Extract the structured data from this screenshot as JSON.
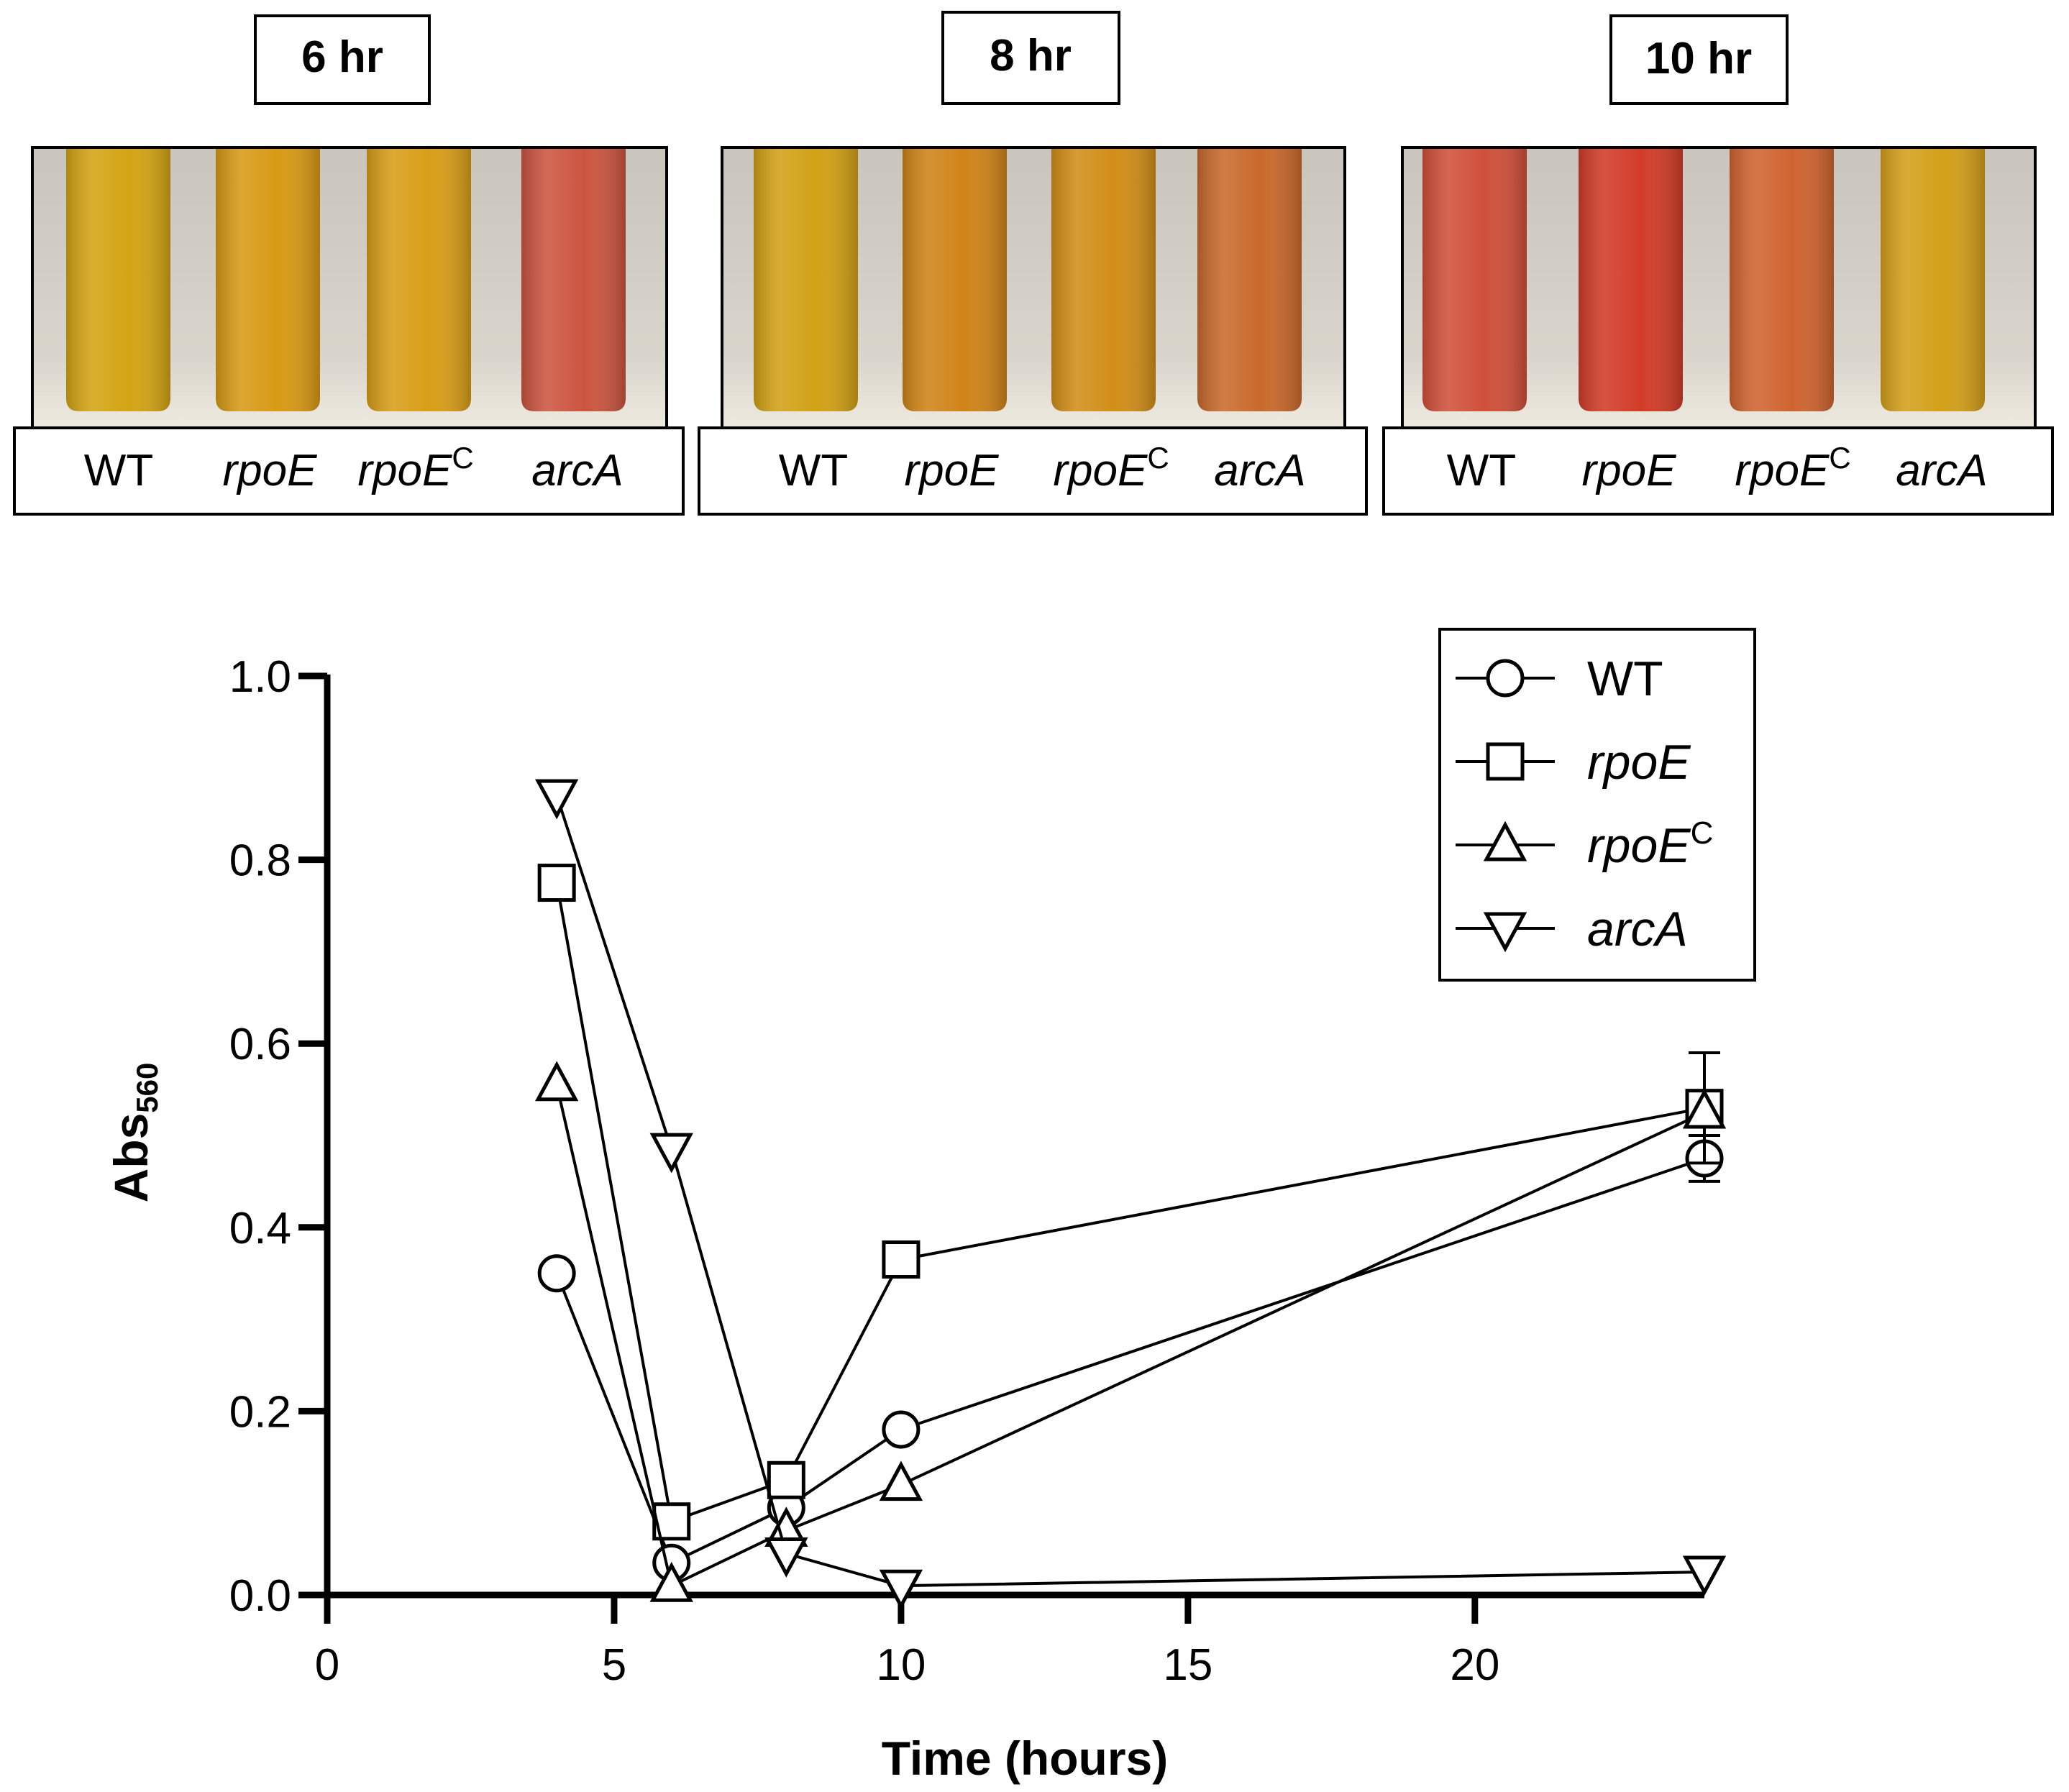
{
  "panels": [
    {
      "time_label": "6 hr",
      "strain_labels": [
        {
          "main": "WT",
          "sup": ""
        },
        {
          "main": "rpoE",
          "sup": ""
        },
        {
          "main": "rpoE",
          "sup": "C"
        },
        {
          "main": "arcA",
          "sup": ""
        }
      ],
      "tube_colors": [
        "#d4a414",
        "#d89a16",
        "#d89e18",
        "#cc5540"
      ]
    },
    {
      "time_label": "8 hr",
      "strain_labels": [
        {
          "main": "WT",
          "sup": ""
        },
        {
          "main": "rpoE",
          "sup": ""
        },
        {
          "main": "rpoE",
          "sup": "C"
        },
        {
          "main": "arcA",
          "sup": ""
        }
      ],
      "tube_colors": [
        "#d2a116",
        "#d08418",
        "#d28e18",
        "#c96a2c"
      ]
    },
    {
      "time_label": "10 hr",
      "strain_labels": [
        {
          "main": "WT",
          "sup": ""
        },
        {
          "main": "rpoE",
          "sup": ""
        },
        {
          "main": "rpoE",
          "sup": "C"
        },
        {
          "main": "arcA",
          "sup": ""
        }
      ],
      "tube_colors": [
        "#d0503a",
        "#d23c28",
        "#d06430",
        "#d4a01a"
      ]
    }
  ],
  "chart_data": {
    "type": "line",
    "xlabel": "Time (hours)",
    "ylabel_main": "Abs",
    "ylabel_sub": "560",
    "xlim": [
      0,
      24
    ],
    "ylim": [
      0,
      1.0
    ],
    "xticks": [
      0,
      5,
      10,
      15,
      20
    ],
    "xtick_labels": [
      "0",
      "5",
      "10",
      "15",
      "20"
    ],
    "yticks": [
      0,
      0.2,
      0.4,
      0.6,
      0.8,
      1.0
    ],
    "ytick_labels": [
      "0.0",
      "0.2",
      "0.4",
      "0.6",
      "0.8",
      "1.0"
    ],
    "x": [
      4,
      6,
      8,
      10,
      24
    ],
    "legend_position": "top-right",
    "series": [
      {
        "name": "WT",
        "sup": "",
        "marker": "circle",
        "values": [
          0.35,
          0.035,
          0.095,
          0.18,
          0.475
        ],
        "error": [
          0,
          0,
          0,
          0,
          0.025
        ]
      },
      {
        "name": "rpoE",
        "sup": "",
        "marker": "square",
        "values": [
          0.775,
          0.08,
          0.125,
          0.365,
          0.53
        ],
        "error": [
          0,
          0,
          0,
          0,
          0.06
        ]
      },
      {
        "name": "rpoE",
        "sup": "C",
        "marker": "triangle-up",
        "values": [
          0.555,
          0.01,
          0.07,
          0.12,
          0.525
        ],
        "error": [
          0,
          0,
          0,
          0,
          0
        ]
      },
      {
        "name": "arcA",
        "sup": "",
        "marker": "triangle-down",
        "values": [
          0.87,
          0.485,
          0.045,
          0.01,
          0.025
        ],
        "error": [
          0,
          0,
          0,
          0,
          0
        ]
      }
    ]
  }
}
